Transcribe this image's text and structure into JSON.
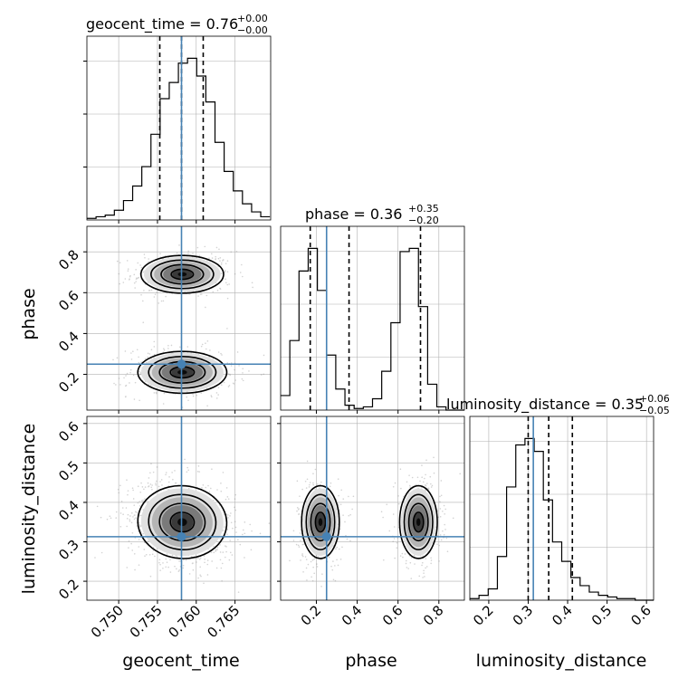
{
  "chart_data": {
    "type": "corner",
    "parameters": [
      "geocent_time",
      "phase",
      "luminosity_distance"
    ],
    "axis_labels": [
      "geocent_time",
      "phase",
      "luminosity_distance"
    ],
    "ranges": {
      "geocent_time": [
        0.7459,
        0.7696
      ],
      "phase": [
        0.025,
        0.925
      ],
      "luminosity_distance": [
        0.152,
        0.618
      ]
    },
    "ticks": {
      "geocent_time": [
        "0.750",
        "0.755",
        "0.760",
        "0.765"
      ],
      "phase": [
        "0.2",
        "0.4",
        "0.6",
        "0.8"
      ],
      "luminosity_distance": [
        "0.2",
        "0.3",
        "0.4",
        "0.5",
        "0.6"
      ]
    },
    "titles": [
      {
        "param": "geocent_time",
        "label": "geocent_time = 0.76",
        "plus": "+0.00",
        "minus": "−0.00"
      },
      {
        "param": "phase",
        "label": "phase = 0.36",
        "plus": "+0.35",
        "minus": "−0.20"
      },
      {
        "param": "luminosity_distance",
        "label": "luminosity_distance = 0.35",
        "plus": "+0.06",
        "minus": "−0.05"
      }
    ],
    "injection": {
      "geocent_time": 0.7581,
      "phase": 0.25,
      "luminosity_distance": 0.313
    },
    "quantiles": {
      "geocent_time": [
        0.7553,
        0.7581,
        0.7609
      ],
      "phase": [
        0.17,
        0.36,
        0.71
      ],
      "luminosity_distance": [
        0.3,
        0.352,
        0.412
      ]
    },
    "histograms": {
      "geocent_time": {
        "start": 0.7459,
        "width": 0.00118,
        "counts": [
          0.01,
          0.02,
          0.03,
          0.06,
          0.12,
          0.21,
          0.33,
          0.53,
          0.75,
          0.85,
          0.97,
          1.0,
          0.89,
          0.73,
          0.48,
          0.3,
          0.18,
          0.1,
          0.05,
          0.02
        ]
      },
      "phase": {
        "start": 0.025,
        "width": 0.045,
        "counts": [
          0.09,
          0.43,
          0.86,
          1.0,
          0.74,
          0.34,
          0.13,
          0.03,
          0.01,
          0.02,
          0.07,
          0.24,
          0.54,
          0.98,
          1.0,
          0.64,
          0.16,
          0.02,
          0.0,
          0.0
        ]
      },
      "luminosity_distance": {
        "start": 0.152,
        "width": 0.0233,
        "counts": [
          0.01,
          0.03,
          0.07,
          0.27,
          0.7,
          0.96,
          1.0,
          0.92,
          0.62,
          0.36,
          0.24,
          0.14,
          0.09,
          0.05,
          0.03,
          0.02,
          0.01,
          0.01,
          0.0,
          0.0
        ]
      }
    },
    "pairs": [
      {
        "x": "geocent_time",
        "y": "phase",
        "clusters": [
          {
            "mx": 0.7582,
            "my": 0.69,
            "sx": 0.0026,
            "sy": 0.045,
            "w": 0.5,
            "rho": 0
          },
          {
            "mx": 0.7582,
            "my": 0.21,
            "sx": 0.0028,
            "sy": 0.05,
            "w": 0.5,
            "rho": 0
          }
        ]
      },
      {
        "x": "geocent_time",
        "y": "luminosity_distance",
        "clusters": [
          {
            "mx": 0.7582,
            "my": 0.35,
            "sx": 0.0028,
            "sy": 0.045,
            "w": 1.0,
            "rho": -0.15
          }
        ]
      },
      {
        "x": "phase",
        "y": "luminosity_distance",
        "clusters": [
          {
            "mx": 0.22,
            "my": 0.35,
            "sx": 0.045,
            "sy": 0.045,
            "w": 0.5,
            "rho": 0
          },
          {
            "mx": 0.7,
            "my": 0.35,
            "sx": 0.045,
            "sy": 0.045,
            "w": 0.5,
            "rho": 0
          }
        ]
      }
    ],
    "colors": {
      "injection": "#4682b4",
      "hist": "#000000",
      "grid": "#b0b0b0",
      "scatter": "#808080"
    }
  }
}
